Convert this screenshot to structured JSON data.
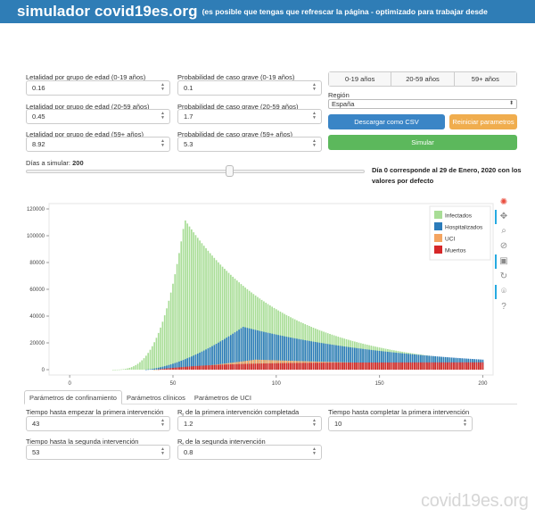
{
  "header": {
    "brand": "simulador covid19es.org",
    "subtitle": "(es posible que tengas que refrescar la página - optimizado para trabajar desde"
  },
  "params": {
    "let_0_19_label": "Letalidad por grupo de edad (0-19 años)",
    "let_0_19": "0.16",
    "grave_0_19_label": "Probabilidad de caso grave (0-19 años)",
    "grave_0_19": "0.1",
    "let_20_59_label": "Letalidad por grupo de edad (20-59 años)",
    "let_20_59": "0.45",
    "grave_20_59_label": "Probabilidad de caso grave (20-59 años)",
    "grave_20_59": "1.7",
    "let_59_label": "Letalidad por grupo de edad (59+ años)",
    "let_59": "8.92",
    "grave_59_label": "Probabilidad de caso grave (59+ años)",
    "grave_59": "5.3"
  },
  "age_toggle": [
    "0-19 años",
    "20-59 años",
    "59+ años"
  ],
  "region": {
    "label": "Región",
    "value": "España"
  },
  "buttons": {
    "download": "Descargar como CSV",
    "reset": "Reiniciar parametros",
    "simulate": "Simular"
  },
  "days": {
    "label": "Días a simular: ",
    "value": "200",
    "fraction": 1.0
  },
  "note": "Día 0 corresponde al 29 de Enero, 2020 con los valores por defecto",
  "colors": {
    "infectados": "#a8dd96",
    "hospitalizados": "#2b7bba",
    "uci": "#f4a460",
    "muertos": "#d62728",
    "blue_button": "#3a85c6",
    "orange_button": "#f0ad4e",
    "green_button": "#5cb85c"
  },
  "toolbar_icons": [
    "bokeh-logo-icon",
    "pan-icon",
    "box-zoom-icon",
    "wheel-zoom-icon",
    "save-icon",
    "reset-icon",
    "hover-icon",
    "help-icon"
  ],
  "chart_data": {
    "type": "bar",
    "xlim": [
      -10,
      205
    ],
    "ylim": [
      -4000,
      124000
    ],
    "xticks": [
      "0",
      "50",
      "100",
      "150",
      "200"
    ],
    "yticks": [
      "0",
      "20000",
      "40000",
      "60000",
      "80000",
      "100000",
      "120000"
    ],
    "legend": [
      "Infectados",
      "Hospitalizados",
      "UCI",
      "Muertos"
    ],
    "legend_position": "top-right",
    "series": [
      {
        "name": "Infectados",
        "peak_day": 56,
        "peak": 115000
      },
      {
        "name": "Hospitalizados",
        "peak_day": 84,
        "peak": 32000
      },
      {
        "name": "UCI",
        "peak_day": 90,
        "peak": 7500
      },
      {
        "name": "Muertos",
        "final": 5500
      }
    ],
    "days": 200
  },
  "tabs": [
    "Parámetros de confinamiento",
    "Parámetros clínicos",
    "Parámetros de UCI"
  ],
  "confinement": {
    "t1_label": "Tiempo hasta empezar la primera intervención",
    "t1": "43",
    "r1_label_r": "R",
    "r1_label_t": "t",
    "r1_label_rest": " de la primera intervención completada",
    "r1": "1.2",
    "tc_label": "Tiempo hasta completar la primera intervención",
    "tc": "10",
    "t2_label": "Tiempo hasta la segunda intervención",
    "t2": "53",
    "r2_label_r": "R",
    "r2_label_t": "t",
    "r2_label_rest": " de la segunda intervención",
    "r2": "0.8"
  },
  "watermark": "covid19es.org"
}
